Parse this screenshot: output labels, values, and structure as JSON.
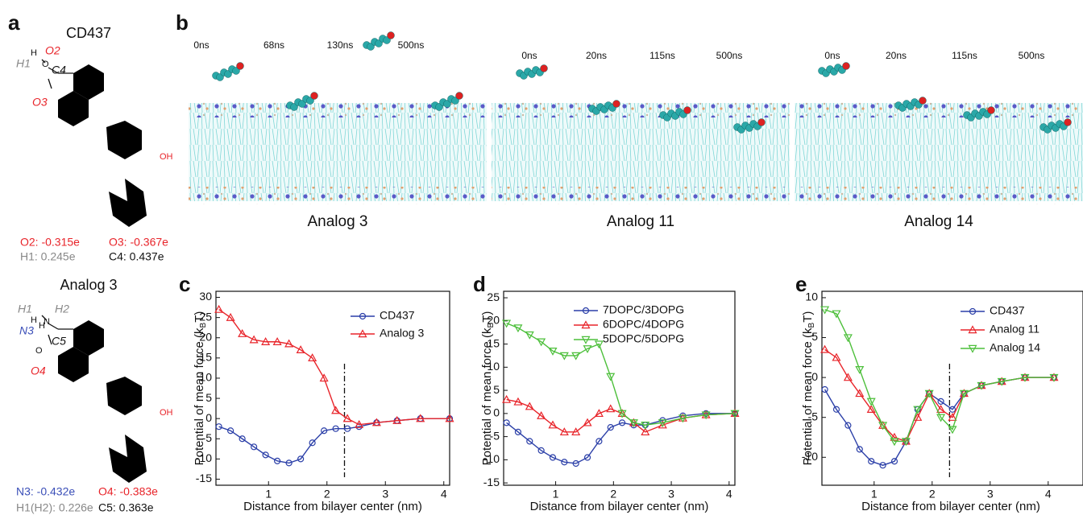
{
  "panel_a": {
    "label": "a",
    "molecules": [
      {
        "name": "CD437",
        "atoms": [
          "H",
          "O2",
          "H1",
          "O",
          "C4",
          "O3",
          "OH"
        ],
        "charges": [
          "O2: -0.315e",
          "O3: -0.367e",
          "H1: 0.245e",
          "C4: 0.437e"
        ]
      },
      {
        "name": "Analog 3",
        "atoms": [
          "H1",
          "H2",
          "H",
          "N",
          "H",
          "N3",
          "C5",
          "O",
          "O4",
          "OH"
        ],
        "charges": [
          "N3: -0.432e",
          "O4: -0.383e",
          "H1(H2): 0.226e",
          "C5: 0.363e"
        ]
      }
    ]
  },
  "panel_b": {
    "label": "b",
    "simulations": [
      {
        "name": "Analog 3",
        "times": [
          "0ns",
          "68ns",
          "130ns",
          "500ns"
        ]
      },
      {
        "name": "Analog 11",
        "times": [
          "0ns",
          "20ns",
          "115ns",
          "500ns"
        ]
      },
      {
        "name": "Analog 14",
        "times": [
          "0ns",
          "20ns",
          "115ns",
          "500ns"
        ]
      }
    ]
  },
  "chart_data": [
    {
      "label": "c",
      "type": "line",
      "xlabel": "Distance from bilayer center (nm)",
      "ylabel": [
        "Potential of mean force (k",
        "B",
        "T)"
      ],
      "x": [
        0.15,
        0.35,
        0.55,
        0.75,
        0.95,
        1.15,
        1.35,
        1.55,
        1.75,
        1.95,
        2.15,
        2.35,
        2.55,
        2.85,
        3.2,
        3.6,
        4.1
      ],
      "xlim": [
        0.1,
        4.1
      ],
      "xticks": [
        1,
        2,
        3,
        4
      ],
      "ylim": [
        -16.5,
        31.5
      ],
      "yticks": [
        -15,
        -10,
        -5,
        0,
        5,
        10,
        15,
        20,
        25,
        30
      ],
      "vline": 2.3,
      "series": [
        {
          "name": "CD437",
          "color": "#2b3fa8",
          "marker": "circle",
          "values": [
            -2,
            -3,
            -5,
            -7,
            -9,
            -10.5,
            -11,
            -10,
            -6,
            -3,
            -2.5,
            -2.5,
            -2,
            -1,
            -0.5,
            0,
            0
          ]
        },
        {
          "name": "Analog 3",
          "color": "#e8242a",
          "marker": "up",
          "values": [
            27,
            25,
            21,
            19.5,
            19,
            19,
            18.5,
            17,
            15,
            10,
            2,
            0,
            -1.5,
            -1,
            -0.5,
            0,
            0
          ]
        }
      ]
    },
    {
      "label": "d",
      "type": "line",
      "xlabel": "Distance from bilayer center (nm)",
      "ylabel": [
        "Potential of mean force (k",
        "B",
        "T)"
      ],
      "x": [
        0.15,
        0.35,
        0.55,
        0.75,
        0.95,
        1.15,
        1.35,
        1.55,
        1.75,
        1.95,
        2.15,
        2.35,
        2.55,
        2.85,
        3.2,
        3.6,
        4.1
      ],
      "xlim": [
        0.1,
        4.1
      ],
      "xticks": [
        1,
        2,
        3,
        4
      ],
      "ylim": [
        -15.5,
        26.4
      ],
      "yticks": [
        -15,
        -10,
        -5,
        0,
        5,
        10,
        15,
        20,
        25
      ],
      "series": [
        {
          "name": "7DOPC/3DOPG",
          "color": "#2b3fa8",
          "marker": "circle",
          "values": [
            -2,
            -4,
            -6,
            -8,
            -9.5,
            -10.5,
            -10.8,
            -9.5,
            -6,
            -3,
            -2,
            -2.5,
            -2.5,
            -1.5,
            -0.5,
            0,
            0
          ]
        },
        {
          "name": "6DOPC/4DOPG",
          "color": "#e8242a",
          "marker": "up",
          "values": [
            3,
            2.5,
            1.5,
            -0.5,
            -2.5,
            -4,
            -4,
            -2,
            0,
            1,
            0,
            -2,
            -4,
            -2.5,
            -1,
            -0.3,
            0
          ]
        },
        {
          "name": "5DOPC/5DOPG",
          "color": "#4cbf3a",
          "marker": "down",
          "values": [
            19.5,
            18.5,
            17,
            15.5,
            13.5,
            12.5,
            12.5,
            14,
            15,
            8,
            0,
            -2,
            -2.5,
            -2,
            -1,
            -0.3,
            0
          ]
        }
      ]
    },
    {
      "label": "e",
      "type": "line",
      "xlabel": "Distance from bilayer center (nm)",
      "ylabel": [
        "Potential of mean force (k",
        "B",
        "T)"
      ],
      "x": [
        0.15,
        0.35,
        0.55,
        0.75,
        0.95,
        1.15,
        1.35,
        1.55,
        1.75,
        1.95,
        2.15,
        2.35,
        2.55,
        2.85,
        3.2,
        3.6,
        4.1
      ],
      "xlim": [
        0.1,
        4.6
      ],
      "xticks": [
        1,
        2,
        3,
        4
      ],
      "ylim": [
        -13.5,
        10.8
      ],
      "yticks": [
        -10,
        -5,
        0,
        5,
        10
      ],
      "vline": 2.3,
      "series": [
        {
          "name": "CD437",
          "color": "#2b3fa8",
          "marker": "circle",
          "values": [
            -1.5,
            -4,
            -6,
            -9,
            -10.5,
            -11,
            -10.5,
            -8,
            -4,
            -2,
            -3,
            -4,
            -2,
            -1,
            -0.5,
            0,
            0
          ]
        },
        {
          "name": "Analog 11",
          "color": "#e8242a",
          "marker": "up",
          "values": [
            3.5,
            2.5,
            0,
            -2,
            -4,
            -6,
            -7.5,
            -8,
            -5,
            -2,
            -4,
            -5,
            -2,
            -1,
            -0.5,
            0,
            0
          ]
        },
        {
          "name": "Analog 14",
          "color": "#4cbf3a",
          "marker": "down",
          "values": [
            8.5,
            8,
            5,
            1,
            -3,
            -6,
            -8,
            -8,
            -4,
            -2,
            -5,
            -6.5,
            -2,
            -1,
            -0.5,
            0,
            0
          ]
        }
      ]
    }
  ]
}
